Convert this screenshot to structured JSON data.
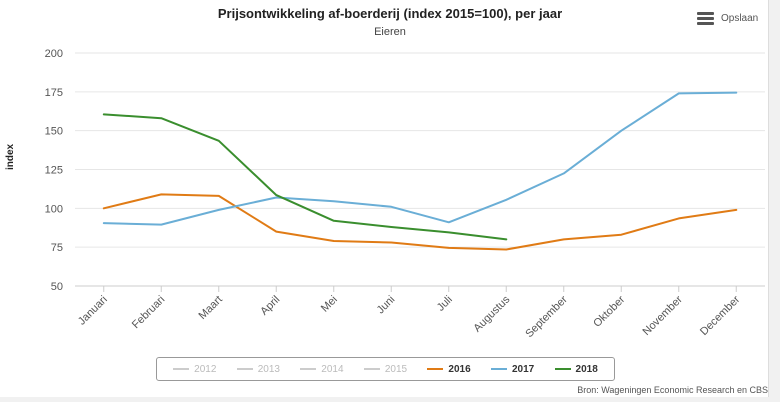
{
  "chart_data": {
    "type": "line",
    "title": "Prijsontwikkeling af-boerderij (index 2015=100), per jaar",
    "subtitle": "Eieren",
    "ylabel": "index",
    "xlabel": "",
    "ylim": [
      50,
      200
    ],
    "yticks": [
      50,
      75,
      100,
      125,
      150,
      175,
      200
    ],
    "categories": [
      "Januari",
      "Februari",
      "Maart",
      "April",
      "Mei",
      "Juni",
      "Juli",
      "Augustus",
      "September",
      "Oktober",
      "November",
      "December"
    ],
    "grid": true,
    "legend_position": "bottom",
    "series": [
      {
        "name": "2016",
        "color": "#e07b15",
        "visible": true,
        "values": [
          100,
          109,
          108,
          85,
          79,
          78,
          74.5,
          73.5,
          80,
          83,
          93.5,
          99
        ]
      },
      {
        "name": "2017",
        "color": "#6aaed6",
        "visible": true,
        "values": [
          90.5,
          89.5,
          99,
          107,
          104.5,
          101,
          91,
          105.5,
          122.5,
          150,
          174,
          174.5
        ]
      },
      {
        "name": "2018",
        "color": "#3a8e2e",
        "visible": true,
        "values": [
          160.5,
          158,
          143.5,
          108.5,
          92,
          88,
          84.5,
          80,
          null,
          null,
          null,
          null
        ]
      }
    ],
    "legend": [
      {
        "name": "2012",
        "color": "#cccccc",
        "visible": false
      },
      {
        "name": "2013",
        "color": "#cccccc",
        "visible": false
      },
      {
        "name": "2014",
        "color": "#cccccc",
        "visible": false
      },
      {
        "name": "2015",
        "color": "#cccccc",
        "visible": false
      },
      {
        "name": "2016",
        "color": "#e07b15",
        "visible": true
      },
      {
        "name": "2017",
        "color": "#6aaed6",
        "visible": true
      },
      {
        "name": "2018",
        "color": "#3a8e2e",
        "visible": true
      }
    ]
  },
  "menu": {
    "label": "Opslaan",
    "icon": "hamburger-icon"
  },
  "source": "Bron: Wageningen Economic Research en CBS"
}
